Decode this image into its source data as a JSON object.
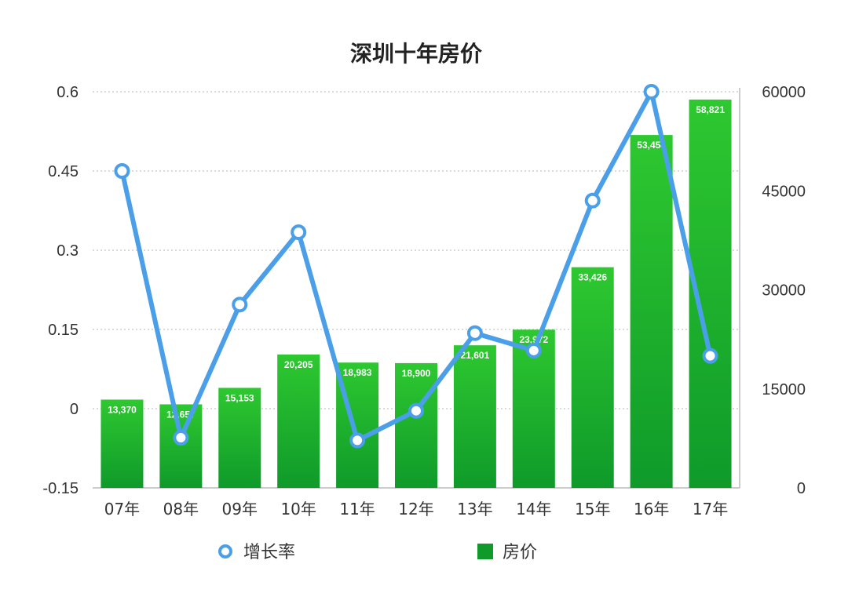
{
  "chart_data": {
    "type": "bar",
    "title": "深圳十年房价",
    "categories": [
      "07年",
      "08年",
      "09年",
      "10年",
      "11年",
      "12年",
      "13年",
      "14年",
      "15年",
      "16年",
      "17年"
    ],
    "bar_series": {
      "name": "房价",
      "values": [
        13370,
        12657,
        15153,
        20205,
        18983,
        18900,
        21601,
        23972,
        33426,
        53454,
        58821
      ],
      "labels": [
        "13,370",
        "12,657",
        "15,153",
        "20,205",
        "18,983",
        "18,900",
        "21,601",
        "23,972",
        "33,426",
        "53,454",
        "58,821"
      ],
      "axis": "right",
      "color_top": "#2ec830",
      "color_bottom": "#0f9a2a"
    },
    "line_series": {
      "name": "增长率",
      "values": [
        0.45,
        -0.055,
        0.197,
        0.334,
        -0.06,
        -0.004,
        0.143,
        0.11,
        0.394,
        0.6,
        0.1
      ],
      "axis": "left",
      "color": "#4a9fe8"
    },
    "left_axis": {
      "ticks": [
        "0.6",
        "0.45",
        "0.3",
        "0.15",
        "0",
        "-0.15"
      ],
      "ylim": [
        -0.15,
        0.6
      ]
    },
    "right_axis": {
      "ticks": [
        "60000",
        "45000",
        "30000",
        "15000",
        "0"
      ],
      "ylim": [
        0,
        60000
      ]
    },
    "grid": true,
    "legend_position": "bottom"
  }
}
